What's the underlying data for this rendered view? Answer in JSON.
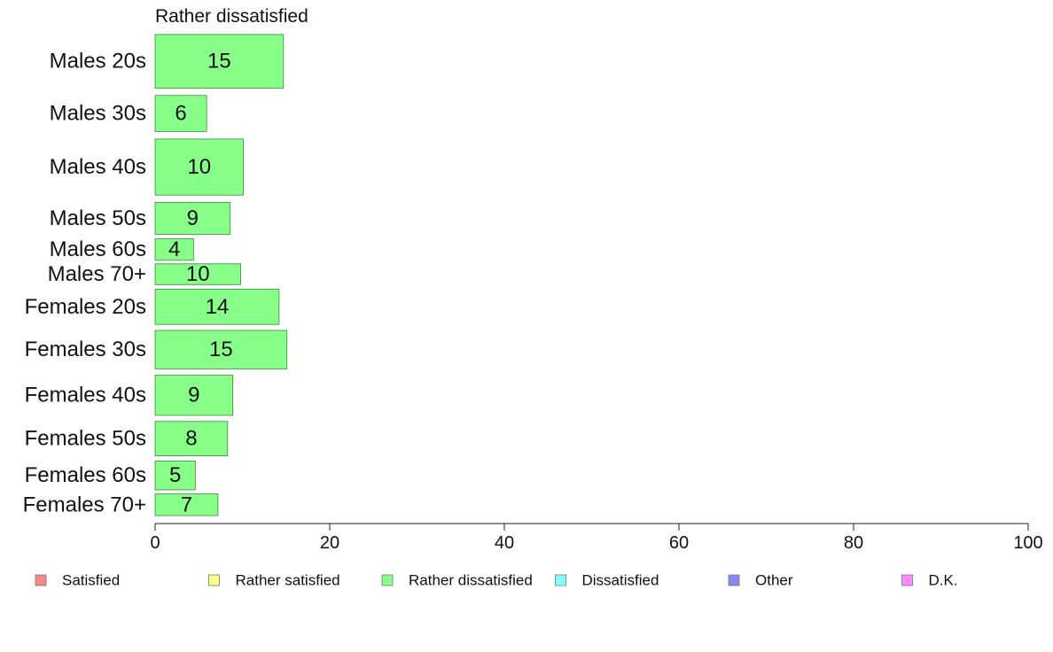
{
  "chart_data": {
    "type": "bar",
    "orientation": "horizontal",
    "title": "Rather dissatisfied",
    "xlim": [
      0,
      100
    ],
    "xticks": [
      0,
      20,
      40,
      60,
      80,
      100
    ],
    "grid": false,
    "legend_position": "bottom",
    "categories": [
      "Males 20s",
      "Males 30s",
      "Males 40s",
      "Males 50s",
      "Males 60s",
      "Males 70+",
      "Females 20s",
      "Females 30s",
      "Females 40s",
      "Females 50s",
      "Females 60s",
      "Females 70+"
    ],
    "category_weights": [
      67,
      45,
      70,
      40,
      27,
      26,
      44,
      48,
      50,
      43,
      36,
      27
    ],
    "series": [
      {
        "name": "Rather dissatisfied",
        "color": "#88ff88",
        "values": [
          14.7,
          5.9,
          10.1,
          8.6,
          4.4,
          9.8,
          14.2,
          15.1,
          8.9,
          8.3,
          4.6,
          7.2
        ],
        "data_labels": [
          "15",
          "6",
          "10",
          "9",
          "4",
          "10",
          "14",
          "15",
          "9",
          "8",
          "5",
          "7"
        ]
      }
    ],
    "legend": [
      {
        "label": "Satisfied",
        "color": "#f88888"
      },
      {
        "label": "Rather satisfied",
        "color": "#ffff88"
      },
      {
        "label": "Rather dissatisfied",
        "color": "#88ff88"
      },
      {
        "label": "Dissatisfied",
        "color": "#88ffff"
      },
      {
        "label": "Other",
        "color": "#8888f0"
      },
      {
        "label": "D.K.",
        "color": "#ff88ff"
      }
    ]
  }
}
